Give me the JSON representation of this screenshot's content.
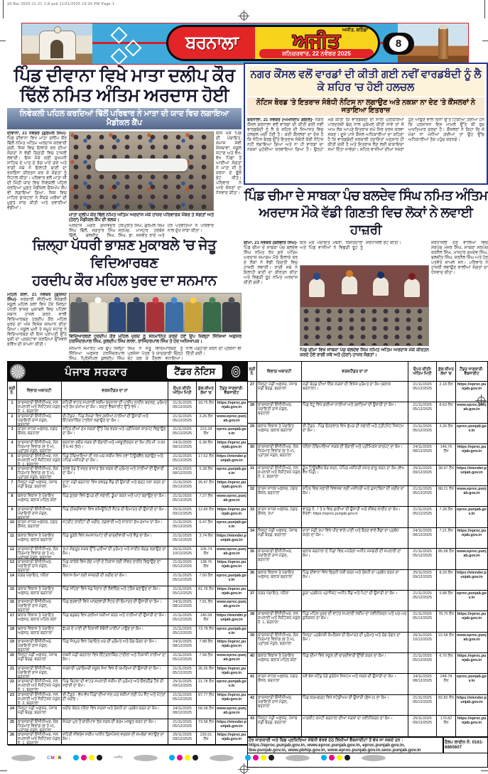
{
  "printer_line": "34 Bar 2025-11-21 1-8.qxd  11/21/2025  10:34 PM  Page 1",
  "masthead": {
    "city": "ਬਰਨਾਲਾ",
    "paper": "ਅਜੀਤ",
    "edition_small": "ਅਜੀਤ, ਬਠਿੰਡਾ",
    "date_line": "ਸ਼ਨਿਚਰਵਾਰ, 22 ਨਵੰਬਰ 2025",
    "page_number": "8",
    "colors": {
      "band": "#3fa9dc",
      "red": "#e32528",
      "yellow": "#f8d31c"
    }
  },
  "articles": {
    "a1": {
      "headline_l1": "ਪਿੰਡ ਦੀਵਾਨਾ ਵਿਖੇ ਮਾਤਾ ਦਲੀਪ ਕੌਰ",
      "headline_l2": "ਢਿੱਲੋਂ ਨਮਿਤ ਅੰਤਿਮ ਅਰਦਾਸ ਹੋਈ",
      "subhead": "ਨਿਵੇਕਲੀ ਪਹਿਲ ਕਰਦਿਆਂ ਢਿੱਲੋਂ ਪਰਿਵਾਰ ਨੇ ਮਾਤਾ ਦੀ ਯਾਦ ਵਿਚ ਲਗਾਇਆ ਮੈਡੀਕਲ ਕੈਂਪ",
      "dateline": "ਦੀਵਾਨਾ, 21 ਨਵੰਬਰ (ਗੁਰਮੇਲ ਸਿੰਘ)-",
      "body_left": "ਪਿੰਡ ਦੀਵਾਨਾ ਵਿਖੇ ਮਾਤਾ ਦਲੀਪ ਕੌਰ ਢਿੱਲੋਂ ਨਮਿਤ ਅੰਤਿਮ ਅਰਦਾਸ ਕਰਵਾਈ ਗਈ, ਜਿਸ ਵਿਚ ਇਲਾਕੇ ਭਰ ਦੀਆਂ ਸੰਗਤਾਂ ਨੇ ਵੱਡੀ ਗਿਣਤੀ ਵਿਚ ਹਾਜ਼ਰੀ ਲਵਾਈ। ਇਸ ਮੌਕੇ ਸ੍ਰੀ ਸੁਖਮਨੀ ਸਾਹਿਬ ਦੇ ਪਾਠ ਦੇ ਭੋਗ ਪਾਏ ਗਏ ਅਤੇ ਰਾਗੀ ਜਥੇ ਨੇ ਇਲਾਹੀ ਬਾਣੀ ਦਾ ਰਸਭਿੰਨਾ ਕੀਰਤਨ ਕਰ ਕੇ ਸੰਗਤਾਂ ਨੂੰ ਨਿਹਾਲ ਕੀਤਾ। ਪਰਿਵਾਰ ਵਲੋਂ ਮਾਤਾ ਜੀ ਦੀ ਮਿੱਠੀ ਯਾਦ ਵਿਚ ਨਿਵੇਕਲੀ ਪਹਿਲ ਕਰਦਿਆਂ ਮੁਫ਼ਤ ਮੈਡੀਕਲ ਚੈਕਅੱਪ ਕੈਂਪ ਵੀ ਲਗਾਇਆ ਗਿਆ, ਜਿਸ ਵਿਚ ਮਾਹਿਰ ਡਾਕਟਰਾਂ ਨੇ ਸੈਂਕੜੇ ਮਰੀਜ਼ਾਂ ਦੀ ਮੁਫ਼ਤ ਜਾਂਚ ਕੀਤੀ ਅਤੇ ਦਵਾਈਆਂ ਵੰਡੀਆਂ।",
      "body_right": "ਇਸ ਮੌਕੇ ਪਿੰਡ ਦੀ ਪੰਚਾਇਤ, ਸਮਾਜ ਸੇਵੀ ਸੰਸਥਾਵਾਂ, ਸਕੂਲ ਸਟਾਫ਼ ਅਤੇ ਵੱਖ-ਵੱਖ ਪਿੰਡਾਂ ਤੋਂ ਆਈਆਂ ਸੰਗਤਾਂ ਨੇ ਮਾਤਾ ਜੀ ਨੂੰ ਸ਼ਰਧਾ ਦੇ ਫੁੱਲ ਭੇਟ ਕੀਤੇ। ਪਰਿਵਾਰ ਨੇ ਆਏ ਸੱਜਣਾਂ ਦਾ ਧੰਨਵਾਦ ਕੀਤਾ।",
      "body_bottom": "ਅਰਦਾਸ ਮਗਰੋਂ ਸੁਖਵਿੰਦਰ ਸਿੰਘ ਢਿੱਲੋਂ, ਜਗਤਾਰ ਸਿੰਘ ਢਿੱਲੋਂ, ਬਲਜੀਤ ਸਿੰਘ, ਹਰਪ੍ਰੀਤ ਸਿੰਘ, ਗੁਰਮੇਲ ਸਿੰਘ ਸਰਪੰਚ, ਮਾਸਟਰ ਹਰਬੰਸ ਸਿੰਘ, ਡਾ. ਜਸਵੰਤ ਰਾਏ ਅਤੇ ਹੋਰ ਪਤਵੰਤਿਆਂ ਨੇ ਪਰਿਵਾਰ ਨਾਲ ਦੁੱਖ ਸਾਂਝਾ ਕੀਤਾ।",
      "caption": "ਮਾਤਾ ਦਲੀਪ ਕੌਰ ਢਿੱਲੋਂ ਨਮਿਤ ਅੰਤਿਮ ਅਰਦਾਸ ਮੌਕੇ ਹਾਜ਼ਰ ਪਰਿਵਾਰਕ ਮੈਂਬਰ ਤੇ ਸੰਗਤਾਂ ਅਤੇ (ਹੇਠਾਂ) ਮੈਡੀਕਲ ਕੈਂਪ ਦੀ ਝਲਕ।"
    },
    "a2": {
      "headline_l1": "ਜ਼ਿਲ੍ਹਾ ਪੱਧਰੀ ਭਾਸ਼ਣ ਮੁਕਾਬਲੇ 'ਚ ਜੇਤੂ ਵਿਦਿਆਰਥਣ",
      "headline_l2": "ਹਰਦੀਪ ਕੌਰ ਮਹਿਲ ਖੁਰਦ ਦਾ ਸਨਮਾਨ",
      "dateline": "ਮਹਿਲ ਕਲਾਂ, 21 ਨਵੰਬਰ (ਗੁਰਜੰਟ ਸਿੰਘ)-",
      "body_left": "ਸਰਕਾਰੀ ਸੀਨੀਅਰ ਸੈਕੰਡਰੀ ਸਕੂਲ ਮਹਿਲ ਕਲਾਂ ਵਿਖੇ ਹੋਏ ਜ਼ਿਲ੍ਹਾ ਪੱਧਰੀ ਭਾਸ਼ਣ ਮੁਕਾਬਲੇ ਵਿਚ ਪਹਿਲਾ ਸਥਾਨ ਹਾਸਲ ਕਰਨ ਵਾਲੀ ਵਿਦਿਆਰਥਣ ਹਰਦੀਪ ਕੌਰ ਮਹਿਲ ਖੁਰਦ ਦਾ ਅੱਜ ਵਿਸ਼ੇਸ਼ ਸਨਮਾਨ ਕੀਤਾ ਗਿਆ। ਸਕੂਲ ਮੁਖੀ ਤੇ ਸਮੂਹ ਸਟਾਫ਼ ਨੇ ਵਿਦਿਆਰਥਣ ਦੀ ਇਸ ਪ੍ਰਾਪਤੀ ਉੱਤੇ ਖੁਸ਼ੀ ਦਾ ਪ੍ਰਗਟਾਵਾ ਕਰਦਿਆਂ ਉੱਜਵਲ ਭਵਿੱਖ ਦੀ ਕਾਮਨਾ ਕੀਤੀ।",
      "body_bottom": "ਸਨਮਾਨ ਸਮਾਰੋਹ ਮੌਕੇ ਉਪ ਜ਼ਿਲ੍ਹਾ ਸਿੱਖਿਆ ਅਫ਼ਸਰ ਹਰਜਿੰਦਰਪਾਲ ਸਿੰਘ, ਪ੍ਰਿੰਸੀਪਲ ਕੁਲਦੀਪ ਸਿੰਘ ਲਾਲਾ ਅਤੇ ਲੈਕਚਰਾਰ ਰਾਜਿੰਦਰਪਾਲ ਸਿੰਘ ਨੇ ਜੇਤੂ ਵਿਦਿਆਰਥਣ ਨੂੰ ਪ੍ਰਸੰਸਾ ਪੱਤਰ ਤੇ ਯਾਦਗਾਰੀ ਚਿੰਨ੍ਹ ਭੇਟ ਕਰ ਕੇ ਹੌਸਲਾ ਵਧਾਇਆ। ਵਿਦਿਆਰਥੀਆਂ ਨੂੰ ਸਖ਼ਤ ਮਿਹਨਤ ਨਾਲ ਪੜ੍ਹਾਈ ਕਰਨ ਦੀ ਪ੍ਰੇਰਨਾ ਵੀ ਦਿੱਤੀ ਗਈ।",
      "caption": "ਵਿਦਿਆਰਥਣ ਹਰਦੀਪ ਕੌਰ ਮਹਿਲ ਖੁਰਦ ਨੂੰ ਸਨਮਾਨਿਤ ਕਰਦੇ ਹੋਏ ਉਪ ਜ਼ਿਲ੍ਹਾ ਸਿੱਖਿਆ ਅਫ਼ਸਰ ਹਰਜਿੰਦਰਪਾਲ ਸਿੰਘ, ਕੁਲਦੀਪ ਸਿੰਘ ਲਾਲਾ, ਰਾਜਿੰਦਰਪਾਲ ਸਿੰਘ ਤੇ ਹੋਰ ਅਧਿਆਪਕ।"
    },
    "a3": {
      "headline": "ਨਗਰ ਕੌਂਸਲ ਵਲੋਂ ਵਾਰਡਾਂ ਦੀ ਕੀਤੀ ਗਈ ਨਵੀਂ ਵਾਰਡਬੰਦੀ ਨੂੰ ਲੈ ਕੇ ਸ਼ਹਿਰ 'ਚ ਹੋਈ ਹਲਚਲ",
      "subhead": "ਨੋਟਿਸ ਬੋਰਡ 'ਤੇ ਇਤਰਾਜ਼ ਸੰਬੰਧੀ ਨੋਟਿਸ ਨਾ ਲਗਾਉਣ ਅਤੇ ਨਕਸ਼ਾ ਨਾ ਦੇਣ 'ਤੇ ਕੌਂਸਲਰਾਂ ਨੇ ਜਤਾਇਆ ਇਤਰਾਜ਼",
      "dateline": "ਬਰਨਾਲਾ, 21 ਨਵੰਬਰ (ਅਮਨਦੀਪ ਗੋਇਲ)-",
      "body": "ਨਗਰ ਕੌਂਸਲ ਬਰਨਾਲਾ ਵਲੋਂ ਵਾਰਡਾਂ ਦੀ ਕੀਤੀ ਗਈ ਨਵੀਂ ਵਾਰਡਬੰਦੀ ਨੂੰ ਲੈ ਕੇ ਸ਼ਹਿਰ ਦੀ ਸਿਆਸਤ ਵਿਚ ਹਲਚਲ ਮਚੀ ਹੋਈ ਹੈ। ਕਈ ਕੌਂਸਲਰਾਂ ਦਾ ਦੋਸ਼ ਹੈ ਕਿ ਨੋਟਿਸ ਬੋਰਡ ਉੱਤੇ ਇਤਰਾਜ਼ ਸੰਬੰਧੀ ਕੋਈ ਨੋਟਿਸ ਨਹੀਂ ਲਗਾਇਆ ਗਿਆ ਅਤੇ ਨਾ ਹੀ ਵਾਰਡਾਂ ਦਾ ਨਕਸ਼ਾ ਮੁਹੱਈਆ ਕਰਵਾਇਆ ਗਿਆ ਹੈ। ਉਨ੍ਹਾਂ ਮੰਗ ਕੀਤੀ ਕਿ ਵਾਰਡਬੰਦੀ ਦੀ ਸਾਰੀ ਪ੍ਰਕਿਰਿਆ ਪਾਰਦਰਸ਼ੀ ਢੰਗ ਨਾਲ ਮੁਕੰਮਲ ਕੀਤੀ ਜਾਵੇ ਤਾਂ ਜੋ ਆਮ ਲੋਕ ਆਪਣੇ ਇਤਰਾਜ਼ ਸਮੇਂ ਸਿਰ ਦਰਜ ਕਰਵਾ ਸਕਣ। ਦੂਜੇ ਪਾਸੇ ਕੌਂਸਲ ਅਧਿਕਾਰੀਆਂ ਦਾ ਕਹਿਣਾ ਹੈ ਕਿ ਵਾਰਡਬੰਦੀ ਸਰਕਾਰੀ ਹਦਾਇਤਾਂ ਅਨੁਸਾਰ ਹੀ ਕੀਤੀ ਗਈ ਹੈ ਅਤੇ ਇਤਰਾਜ਼ ਲੈਣ ਲਈ ਬਾਕਾਇਦਾ ਸਮਾਂ ਦਿੱਤਾ ਜਾਵੇਗਾ। ਸ਼ਹਿਰ ਵਾਸੀਆਂ ਦੀਆਂ ਨਜ਼ਰਾਂ ਹੁਣ ਆਉਣ ਵਾਲੇ ਦਿਨਾਂ ਉੱਤੇ ਟਿਕੀਆਂ ਹੋਈਆਂ ਹਨ ਕਿ ਪ੍ਰਸ਼ਾਸਨ ਇਸ ਮਾਮਲੇ ਉੱਤੇ ਕੀ ਰੁਖ਼ ਅਖਤਿਆਰ ਕਰਦਾ ਹੈ। ਕੌਂਸਲਰਾਂ ਨੇ ਕਿਹਾ ਕਿ ਜੇ ਮੰਗਾਂ ਨਾ ਮੰਨੀਆਂ ਗਈਆਂ ਤਾਂ ਉਹ ਉੱਚ ਅਧਿਕਾਰੀਆਂ ਤੱਕ ਪਹੁੰਚ ਕਰਨਗੇ।"
    },
    "a4": {
      "headline_l1": "ਪਿੰਡ ਚੀਮਾ ਦੇ ਸਾਬਕਾ ਪੰਚ ਬਲਦੇਵ ਸਿੰਘ ਨਮਿਤ ਅੰਤਿਮ",
      "headline_l2": "ਅਰਦਾਸ ਮੌਕੇ ਵੱਡੀ ਗਿਣਤੀ ਵਿਚ ਲੋਕਾਂ ਨੇ ਲਵਾਈ ਹਾਜ਼ਰੀ",
      "dateline": "ਚੀਮਾ, 21 ਨਵੰਬਰ (ਬਲਵੀਰ ਸਿੰਘ)-",
      "body_left": "ਪਿੰਡ ਚੀਮਾ ਦੇ ਸਾਬਕਾ ਪੰਚ ਬਲਦੇਵ ਸਿੰਘ ਨਮਿਤ ਰੱਖੇ ਗਏ ਅੰਤਿਮ ਅਰਦਾਸ ਸਮਾਗਮ ਮੌਕੇ ਇਲਾਕੇ ਭਰ ਦੇ ਲੋਕਾਂ ਨੇ ਵੱਡੀ ਗਿਣਤੀ ਵਿਚ ਹਾਜ਼ਰੀ ਲਵਾਈ। ਰਾਗੀ ਜਥੇ ਨੇ ਇਲਾਹੀ ਬਾਣੀ ਦਾ ਕੀਰਤਨ ਕੀਤਾ ਅਤੇ ਵਿਛੜੀ ਰੂਹ ਨਮਿਤ ਅਰਦਾਸ ਕੀਤੀ ਗਈ।",
      "body_mid_top": "ਇਸ ਮੌਕੇ ਪੰਚਾਇਤ ਮੈਂਬਰਾਂ, ਰਿਸ਼ਤੇਦਾਰਾਂ ਅਤੇ ਪਿੰਡ ਵਾਸੀਆਂ ਨੇ ਵਿਛੜੀ ਰੂਹ ਨੂੰ ਸ਼ਰਧਾਂਜਲੀ ਭੇਟ ਕੀਤੀ।",
      "body_right": "ਸ਼ਰਧਾਂਜਲੀ ਦੇਣ ਵਾਲਿਆਂ ਵਿਚ ਸਰਪੰਚ ਮੇਜਰ ਸਿੰਘ, ਸਾਬਕਾ ਸਰਪੰਚ ਕਰਨੈਲ ਸਿੰਘ, ਮਾਸਟਰ ਸੁਖਦੇਵ ਸਿੰਘ, ਬਲਜੀਤ ਸਿੰਘ, ਜਰਨੈਲ ਸਿੰਘ ਅਤੇ ਹੋਰ ਪਤਵੰਤੇ ਸ਼ਾਮਲ ਸਨ। ਪਰਿਵਾਰ ਨੇ ਹਾਜ਼ਰੀ ਲਵਾਉਣ ਵਾਲੀਆਂ ਸੰਗਤਾਂ ਦਾ ਧੰਨਵਾਦ ਕੀਤਾ।",
      "caption": "ਪਿੰਡ ਚੀਮਾ ਵਿਖੇ ਸਾਬਕਾ ਪੰਚ ਬਲਦੇਵ ਸਿੰਘ ਨਮਿਤ ਅੰਤਿਮ ਅਰਦਾਸ ਮੌਕੇ ਕੀਰਤਨ ਕਰਦੇ ਹੋਏ ਰਾਗੀ ਜਥੇ ਅਤੇ (ਹੇਠਾਂ) ਹਾਜ਼ਰ ਸੰਗਤਾਂ।"
    }
  },
  "tender": {
    "gov_title": "ਪੰਜਾਬ ਸਰਕਾਰ",
    "notice_title": "ਟੈਂਡਰ ਨੋਟਿਸ",
    "headers": [
      "ਲੜੀ ਨੰ.",
      "ਵਿਭਾਗ ਅਥਾਰਟੀ",
      "ਵਰਕ/ਟੈਂਡਰ ਦਾ ਨਾਂ",
      "ਓਪਨ ਕੀਤੀ/ ਅੰਤਿਮ ਮਿਤੀ",
      "ਕੁੱਲ ਕੀਮਤ ਲੱਖਾਂ 'ਚ",
      "ਟੈਂਡਰ ਜਾਣਕਾਰੀ- ਵੈੱਬਸਾਈਟ"
    ],
    "rows_left": [
      {
        "no": "1",
        "dept": "ਕਾਰਜਕਾਰੀ ਇੰਜੀਨੀਅਰ, ਜਲ ਸਪਲਾਈ ਅਤੇ ਸੈਨੀਟੇਸ਼ਨ ਮੰਡਲ ਨੰ. 1, ਬਰਨਾਲਾ",
        "work": "ਸ਼ਹਿਰੀ ਵਾਟਰ ਸਪਲਾਈ ਸਕੀਮ ਬਰਨਾਲਾ ਦੀ ਪਾਈਪ ਲਾਈਨ ਬਦਲਣ, ਮੁਰੰਮਤ ਅਤੇ ਰੱਖ-ਰਖਾਅ ਦਾ ਕੰਮ। ਸ਼ਰਤਾਂ ਵੈੱਬਸਾਈਟ ਉੱਤੇ ਵੇਖੋ।",
        "open": "21/11/2025",
        "close": "05/12/2025",
        "amount": "18.75 ਲੱਖ",
        "web": "https://eproc.punjab.gov.in"
      },
      {
        "no": "2",
        "dept": "ਕਾਰਜਕਾਰੀ ਇੰਜੀਨੀਅਰ, ਪੰਚਾਇਤੀ ਰਾਜ ਮੰਡਲ, ਬਰਨਾਲਾ",
        "work": "ਈ-ਟੈਂਡਰ - ਪਿੰਡ ਸੰਘੇੜਾ ਵਿਖੇ ਗਲੀਆਂ-ਨਾਲੀਆਂ ਦੀ ਉਸਾਰੀ ਅਤੇ ਇੰਟਰਲਾਕਿੰਗ ਟਾਈਲਾਂ ਲਗਾਉਣ ਦਾ ਕੰਮ।",
        "open": "21/11/2025",
        "close": "05/12/2025",
        "amount": "3.26 ਲੱਖ",
        "web": "www.eproc.punjab.gov.in"
      },
      {
        "no": "3",
        "dept": "ਕਾਰਜ ਸਾਧਕ ਅਫ਼ਸਰ, ਨਗਰ ਕੌਂਸਲ, ਬਰਨਾਲਾ",
        "work": "ਸ਼ਹਿਰ ਦੀਆਂ ਮੁੱਖ ਸੜਕਾਂ ਉੱਤੇ ਪੈਚ ਵਰਕ ਅਤੇ ਪ੍ਰੀਮਿਕਸ ਕਾਰਪੇਟ ਵਿਛਾਉਣ ਦਾ ਕੰਮ।",
        "open": "21/11/2025",
        "close": "05/12/2025",
        "amount": "223.28 ਲੱਖ",
        "web": "eproc.punjab.gov.in"
      },
      {
        "no": "4",
        "dept": "ਕਾਰਜਕਾਰੀ ਇੰਜੀਨੀਅਰ, ਲੋਕ ਨਿਰਮਾਣ ਵਿਭਾਗ (ਭ ਤੇ ਮ), ਪ੍ਰਾਂਤਕ ਮੰਡਲ, ਬਰਨਾਲਾ",
        "work": "ਬਰਨਾਲਾ-ਭਦੌੜ ਸੜਕ ਦੀ ਚੌੜਾਈ ਅਤੇ ਮਜ਼ਬੂਤੀਕਰਨ ਦਾ ਕੰਮ (ਕਿ.ਮੀ. 0.00 ਤੋਂ 6.40 ਤੱਕ)।",
        "open": "24/11/2025",
        "close": "08/12/2025",
        "amount": "6.38 ਲੱਖ",
        "web": "https://eproc.punjab.gov.in"
      },
      {
        "no": "5",
        "dept": "ਕਾਰਜਕਾਰੀ ਇੰਜੀਨੀਅਰ, ਜਲ ਸਪਲਾਈ ਅਤੇ ਸੈਨੀਟੇਸ਼ਨ ਮੰਡਲ ਨੰ. 1, ਬਰਨਾਲਾ",
        "work": "ਪਿੰਡ ਹੰਢਿਆਇਆ ਦੀ ਜਲ ਘਰ ਸਕੀਮ ਵਿਖੇ ਨਵਾਂ ਟਿਊਬਵੈੱਲ ਲਗਾਉਣ ਅਤੇ ਪੰਪਿੰਗ ਮਸ਼ੀਨਰੀ ਦਾ ਕੰਮ।",
        "open": "21/11/2025",
        "close": "05/12/2025",
        "amount": "17.62 ਲੱਖ",
        "web": "https://etender.punjab.gov.in"
      },
      {
        "no": "6",
        "dept": "ਕਾਰਜਕਾਰੀ ਇੰਜੀਨੀਅਰ, ਲੋਕ ਨਿਰਮਾਣ ਵਿਭਾਗ (ਭ ਤੇ ਮ), ਪ੍ਰਾਂਤਕ ਮੰਡਲ, ਬਰਨਾਲਾ",
        "work": "ਰੇਲਵੇ ਰੋਡ ਤੋਂ ਸਦਰ ਬਾਜ਼ਾਰ ਤੱਕ ਸੜਕ ਦੀ ਮੁਰੰਮਤ ਅਤੇ ਨਾਲੀਆਂ ਦੀ ਉਸਾਰੀ ਦਾ ਕੰਮ।",
        "open": "24/11/2025",
        "close": "08/12/2025",
        "amount": "5.28 ਲੱਖ",
        "web": "eproc.punjab.gov.in"
      },
      {
        "no": "7",
        "dept": "ਜ਼ਿਲ੍ਹਾ ਮੰਡੀ ਅਫ਼ਸਰ, ਪੰਜਾਬ ਮੰਡੀ ਬੋਰਡ, ਬਰਨਾਲਾ",
        "work": "ਦਾਣਾ ਮੰਡੀ ਬਰਨਾਲਾ ਵਿਖੇ ਕਵਰਡ ਸ਼ੈੱਡ ਦੀ ਉਸਾਰੀ ਅਤੇ ਫੜ੍ਹ ਪੱਕਾ ਕਰਨ ਦਾ ਕੰਮ।",
        "open": "21/11/2025",
        "close": "05/12/2025",
        "amount": "26.47 ਲੱਖ",
        "web": "https://eproc.punjab.gov.in"
      },
      {
        "no": "8",
        "dept": "ਬਲਾਕ ਵਿਕਾਸ ਤੇ ਪੰਚਾਇਤ ਅਫ਼ਸਰ, ਬਲਾਕ ਮਹਿਲ ਕਲਾਂ",
        "work": "ਪਿੰਡ ਕੁਤਬਾ ਵਿਖੇ ਛੱਪੜ ਦੀ ਸਫ਼ਾਈ, ਡੂੰਘਾ ਕਰਨ ਅਤੇ ਘਾਟ ਬਣਾਉਣ ਦਾ ਕੰਮ।",
        "open": "21/11/2025",
        "close": "05/12/2025",
        "amount": "7.27 ਲੱਖ",
        "web": "www.eproc.punjab.gov.in"
      },
      {
        "no": "9",
        "dept": "ਕਾਰਜਕਾਰੀ ਇੰਜੀਨੀਅਰ, ਪੰਚਾਇਤੀ ਰਾਜ ਮੰਡਲ, ਬਰਨਾਲਾ",
        "work": "ਪਿੰਡ ਠੀਕਰੀਵਾਲਾ ਵਿਖੇ ਕਮਿਊਨਿਟੀ ਸੈਂਟਰ ਦੀ ਇਮਾਰਤ ਦੀ ਉਸਾਰੀ ਦਾ ਕੰਮ।",
        "open": "25/11/2025",
        "close": "09/12/2025",
        "amount": "12.89 ਲੱਖ",
        "web": "https://eproc.punjab.gov.in"
      },
      {
        "no": "10",
        "dept": "ਕਾਰਜ ਸਾਧਕ ਅਫ਼ਸਰ, ਨਗਰ ਕੌਂਸਲ, ਬਰਨਾਲਾ",
        "work": "ਸਟਰੀਟ ਲਾਈਟਾਂ ਦੀ ਖ਼ਰੀਦ, ਲਗਵਾਈ ਅਤੇ ਸਾਲਾਨਾ ਰੱਖ-ਰਖਾਅ ਦਾ ਕੰਮ।",
        "open": "21/11/2025",
        "close": "05/12/2025",
        "amount": "6.47 ਲੱਖ",
        "web": "eproc.punjab.gov.in"
      },
      {
        "no": "11",
        "dept": "ਬਲਾਕ ਵਿਕਾਸ ਤੇ ਪੰਚਾਇਤ ਅਫ਼ਸਰ, ਬਲਾਕ ਬਰਨਾਲਾ",
        "work": "ਪਿੰਡ ਰੂੜੇਕੇ ਵਿਖੇ ਸ਼ਮਸ਼ਾਨਘਾਟ ਦੀ ਚਾਰਦੀਵਾਰੀ ਅਤੇ ਸ਼ੈੱਡ ਦਾ ਕੰਮ।",
        "open": "21/11/2025",
        "close": "05/12/2025",
        "amount": "3.74 ਲੱਖ",
        "web": "https://etender.punjab.gov.in"
      },
      {
        "no": "12",
        "dept": "ਕਾਰਜਕਾਰੀ ਇੰਜੀਨੀਅਰ, ਲੋਕ ਨਿਰਮਾਣ ਵਿਭਾਗ (ਭ ਤੇ ਮ), ਪ੍ਰਾਂਤਕ ਮੰਡਲ, ਬਰਨਾਲਾ",
        "work": "ਤਪਾ-ਸੰਗਰੂਰ ਸੜਕ ਉੱਤੇ ਪੁਲੀਆਂ ਦੀ ਮੁਰੰਮਤ ਅਤੇ ਸਾਈਨ ਬੋਰਡ ਲਗਾਉਣ ਦਾ ਕੰਮ।",
        "open": "26/11/2025",
        "close": "10/12/2025",
        "amount": "106.74 ਲੱਖ",
        "web": "www.eproc.punjab.gov.in"
      },
      {
        "no": "13",
        "dept": "ਕਾਰਜਕਾਰੀ ਇੰਜੀਨੀਅਰ, ਪੰਚਾਇਤੀ ਰਾਜ ਮੰਡਲ, ਬਰਨਾਲਾ",
        "work": "ਪਿੰਡ ਕਾਲੇਕੇ ਵਿਖੇ ਗੰਦੇ ਪਾਣੀ ਦੇ ਨਿਕਾਸ ਲਈ ਸੀਵਰ ਲਾਈਨ ਵਿਛਾਉਣ ਦਾ ਕੰਮ।",
        "open": "21/11/2025",
        "close": "05/12/2025",
        "amount": "138.76 ਲੱਖ",
        "web": "https://eproc.punjab.gov.in"
      },
      {
        "no": "14",
        "dept": "ਨਗਰ ਪੰਚਾਇਤ, ਧਨੌਲਾ",
        "work": "ਵਿਕਾਸ ਕੰਮਾਂ ਲਈ ਸਮੱਗਰੀ ਦੀ ਖ਼ਰੀਦ ਦਾ ਕੰਮ।",
        "open": "21/11/2025",
        "close": "05/12/2025",
        "amount": "7.50 ਲੱਖ",
        "web": "eproc.punjab.gov.in"
      },
      {
        "no": "15",
        "dept": "ਬਲਾਕ ਵਿਕਾਸ ਤੇ ਪੰਚਾਇਤ ਅਫ਼ਸਰ, ਬਲਾਕ ਬਰਨਾਲਾ",
        "work": "ਪਿੰਡ ਸਹਿਣਾ ਵਿਖੇ ਖੇਡ ਮੈਦਾਨ ਦੀ ਲੈਵਲਿੰਗ ਅਤੇ ਟਰੈਕ ਬਣਾਉਣ ਦਾ ਕੰਮ।",
        "open": "21/11/2025",
        "close": "05/12/2025",
        "amount": "81.78 ਲੱਖ",
        "web": "https://eproc.punjab.gov.in"
      },
      {
        "no": "16",
        "dept": "ਕਾਰਜਕਾਰੀ ਇੰਜੀਨੀਅਰ, ਪੰਚਾਇਤੀ ਰਾਜ ਮੰਡਲ, ਬਰਨਾਲਾ",
        "work": "ਪਿੰਡ ਫਰਵਾਹੀ ਵਿਖੇ ਆਂਗਣਵਾੜੀ ਸੈਂਟਰ ਦੀ ਇਮਾਰਤ ਦੀ ਉਸਾਰੀ ਦਾ ਕੰਮ।",
        "open": "24/11/2025",
        "close": "08/12/2025",
        "amount": "7.81 ਲੱਖ",
        "web": "www.eproc.punjab.gov.in"
      },
      {
        "no": "17",
        "dept": "ਬਲਾਕ ਵਿਕਾਸ ਤੇ ਪੰਚਾਇਤ ਅਫ਼ਸਰ, ਬਲਾਕ ਮਹਿਲ ਕਲਾਂ",
        "work": "ਪਿੰਡ ਬਡਬਰ ਵਿਖੇ ਗਲੀਆਂ ਪੱਕੀਆਂ ਕਰਨ ਅਤੇ ਨਾਲੀਆਂ ਦੀ ਉਸਾਰੀ ਦਾ ਕੰਮ।",
        "open": "21/11/2025",
        "close": "05/12/2025",
        "amount": "146.58 ਲੱਖ",
        "web": "https://etender.punjab.gov.in"
      },
      {
        "no": "18",
        "dept": "ਬਲਾਕ ਵਿਕਾਸ ਤੇ ਪੰਚਾਇਤ ਅਫ਼ਸਰ, ਬਲਾਕ ਬਰਨਾਲਾ",
        "work": "ਛੱਪੜ ਦੇ ਪਾਣੀ ਦੀ ਨਿਕਾਸੀ ਸੰਬੰਧੀ ਪਾਈਪਾਂ ਪਾਉਣ ਦਾ ਕੰਮ।",
        "open": "21/11/2025",
        "close": "05/12/2025",
        "amount": "73.78 ਲੱਖ",
        "web": "eproc.punjab.gov.in"
      },
      {
        "no": "19",
        "dept": "ਕਾਰਜਕਾਰੀ ਇੰਜੀਨੀਅਰ, ਪੰਚਾਇਤੀ ਰਾਜ ਮੰਡਲ, ਬਰਨਾਲਾ",
        "work": "ਪਿੰਡ ਜੋਧਪੁਰ ਵਿਖੇ ਪੰਚਾਇਤ ਘਰ ਦੀ ਮੁਰੰਮਤ ਅਤੇ ਰੰਗ-ਰੋਗਨ ਦਾ ਕੰਮ।",
        "open": "24/11/2025",
        "close": "08/12/2025",
        "amount": "7.88 ਲੱਖ",
        "web": "https://eproc.punjab.gov.in"
      },
      {
        "no": "20",
        "dept": "ਜ਼ਿਲ੍ਹਾ ਮੰਡੀ ਅਫ਼ਸਰ, ਪੰਜਾਬ ਮੰਡੀ ਬੋਰਡ, ਬਰਨਾਲਾ",
        "work": "ਸਬਜ਼ੀ ਮੰਡੀ ਬਰਨਾਲਾ ਵਿਖੇ ਇੰਟਰਲਾਕਿੰਗ ਟਾਈਲਾਂ ਅਤੇ ਨਿਕਾਸੀ ਨਾਲੀਆਂ ਦਾ ਕੰਮ।",
        "open": "21/11/2025",
        "close": "05/12/2025",
        "amount": "7.58 ਲੱਖ",
        "web": "www.eproc.punjab.gov.in"
      },
      {
        "no": "21",
        "dept": "ਕਾਰਜਕਾਰੀ ਇੰਜੀਨੀਅਰ, ਪੰਚਾਇਤੀ ਰਾਜ ਮੰਡਲ, ਬਰਨਾਲਾ",
        "work": "ਸਰਕਾਰੀ ਪ੍ਰਾਇਮਰੀ ਸਕੂਲ ਸੇਖਾ ਵਿਖੇ ਦੋ ਕਮਰਿਆਂ ਦੀ ਉਸਾਰੀ ਦਾ ਕੰਮ।",
        "open": "21/11/2025",
        "close": "05/12/2025",
        "amount": "26.26 ਲੱਖ",
        "web": "https://eproc.punjab.gov.in"
      },
      {
        "no": "22",
        "dept": "ਕਾਰਜਕਾਰੀ ਇੰਜੀਨੀਅਰ, ਜਲ ਸਪਲਾਈ ਅਤੇ ਸੈਨੀਟੇਸ਼ਨ ਮੰਡਲ ਨੰ. 1, ਬਰਨਾਲਾ",
        "work": "ਪਿੰਡ ਬਿਹਲਾ ਦੀ ਵਾਟਰ ਸਪਲਾਈ ਸਕੀਮ ਦੀ ਮੁਰੰਮਤ ਅਤੇ ਓਵਰਹੈੱਡ ਟੈਂਕ ਦੀ ਸਫ਼ਾਈ ਦਾ ਕੰਮ।",
        "open": "25/11/2025",
        "close": "09/12/2025",
        "amount": "21.78 ਲੱਖ",
        "web": "eproc.punjab.gov.in"
      },
      {
        "no": "23",
        "dept": "ਕਾਰਜਕਾਰੀ ਇੰਜੀਨੀਅਰ, ਜਲ ਸਪਲਾਈ ਅਤੇ ਸੈਨੀਟੇਸ਼ਨ ਮੰਡਲ ਨੰ. 2, ਬਰਨਾਲਾ",
        "work": "ਈ-ਟੈਂਡਰ - ਵੱਖ-ਵੱਖ ਪਿੰਡਾਂ ਦੀਆਂ ਜਲ ਘਰ ਸਕੀਮਾਂ ਲਈ ਪੰਪ ਸੈੱਟ ਅਤੇ ਮੋਟਰਾਂ ਦੀ ਖ਼ਰੀਦ।",
        "open": "21/11/2025",
        "close": "05/12/2025",
        "amount": "87.77 ਲੱਖ",
        "web": "https://eproc.punjab.gov.in"
      },
      {
        "no": "24",
        "dept": "ਜ਼ਿਲ੍ਹਾ ਮੰਡੀ ਅਫ਼ਸਰ, ਪੰਜਾਬ ਮੰਡੀ ਬੋਰਡ, ਬਰਨਾਲਾ",
        "work": "ਖ਼ਰੀਦ ਕੇਂਦਰ ਧਨੌਲਾ ਵਿਖੇ ਸੜਕਾਂ ਅਤੇ ਰੋਸ਼ਨੀ ਦਾ ਪ੍ਰਬੰਧ ਕਰਨ ਦਾ ਕੰਮ।",
        "open": "24/11/2025",
        "close": "08/12/2025",
        "amount": "58.38 ਲੱਖ",
        "web": "www.eproc.punjab.gov.in"
      },
      {
        "no": "25",
        "dept": "ਕਾਰਜਕਾਰੀ ਇੰਜੀਨੀਅਰ, ਲੋਕ ਨਿਰਮਾਣ ਵਿਭਾਗ (ਭ ਤੇ ਮ), ਪ੍ਰਾਂਤਕ ਮੰਡਲ, ਬਰਨਾਲਾ",
        "work": "ਸੰਘੇੜਾ ਪੁਲ ਤੋਂ ਬਾਈਪਾਸ ਤੱਕ ਸੜਕ ਦੀ ਬਰਮ ਮਜ਼ਬੂਤ ਕਰਨ ਦਾ ਕੰਮ।",
        "open": "21/11/2025",
        "close": "05/12/2025",
        "amount": "73.58 ਲੱਖ",
        "web": "https://etender.punjab.gov.in"
      },
      {
        "no": "26",
        "dept": "ਕਾਰਜਕਾਰੀ ਇੰਜੀਨੀਅਰ, ਜਲ ਸਪਲਾਈ ਅਤੇ ਸੈਨੀਟੇਸ਼ਨ ਮੰਡਲ ਨੰ. 1, ਬਰਨਾਲਾ",
        "work": "ਸ਼ਹਿਰੀ ਸੀਵਰੇਜ ਸਕੀਮ ਅਧੀਨ ਡਿਸਪੋਜ਼ਲ ਵਰਕਸ ਦੀ ਸਮਰੱਥਾ ਵਧਾਉਣ ਦਾ ਕੰਮ।",
        "open": "25/11/2025",
        "close": "09/12/2025",
        "amount": "226.51 ਲੱਖ",
        "web": "https://eproc.punjab.gov.in"
      }
    ],
    "rows_right": [
      {
        "no": "27",
        "dept": "ਜ਼ਿਲ੍ਹਾ ਮੰਡੀ ਅਫ਼ਸਰ, ਪੰਜਾਬ ਮੰਡੀ ਬੋਰਡ, ਬਰਨਾਲਾ",
        "work": "ਮੰਡੀ ਬੋਰਡ ਦੀਆਂ ਲਿੰਕ ਸੜਕਾਂ ਦੀ ਵਿਸ਼ੇਸ਼ ਮੁਰੰਮਤ ਦਾ ਕੰਮ (ਬਲਾਕ ਬਰਨਾਲਾ)।",
        "open": "21/11/2025",
        "close": "05/12/2025",
        "amount": "2.18 ਲੱਖ",
        "web": "https://eproc.punjab.gov.in"
      },
      {
        "no": "28",
        "dept": "ਕਾਰਜਕਾਰੀ ਇੰਜੀਨੀਅਰ, ਪੰਚਾਇਤੀ ਰਾਜ ਮੰਡਲ, ਬਰਨਾਲਾ",
        "work": "ਪਿੰਡ ਕੱਟੂ ਵਿਖੇ ਗਲੀਆਂ-ਨਾਲੀਆਂ ਅਤੇ ਰਸਤਿਆਂ ਦੀ ਉਸਾਰੀ ਦਾ ਕੰਮ।",
        "open": "21/11/2025",
        "close": "05/12/2025",
        "amount": "8.63 ਲੱਖ",
        "web": "www.eproc.punjab.gov.in"
      },
      {
        "no": "29",
        "dept": "ਬਲਾਕ ਵਿਕਾਸ ਤੇ ਪੰਚਾਇਤ ਅਫ਼ਸਰ, ਬਲਾਕ ਬਰਨਾਲਾ",
        "work": "ਈ-ਟੈਂਡਰ - ਪਿੰਡ ਚੰਨਣਵਾਲ ਵਿਖੇ ਛੱਪੜ ਦੀ ਸਫ਼ਾਈ ਅਤੇ ਟ੍ਰੀਟਮੈਂਟ ਸਿਸਟਮ ਦਾ ਕੰਮ।",
        "open": "21/11/2025",
        "close": "05/12/2025",
        "amount": "3.26 ਲੱਖ",
        "web": "eproc.punjab.gov.in"
      },
      {
        "no": "30",
        "dept": "ਕਾਰਜਕਾਰੀ ਇੰਜੀਨੀਅਰ, ਲੋਕ ਨਿਰਮਾਣ ਵਿਭਾਗ (ਭ ਤੇ ਮ), ਪ੍ਰਾਂਤਕ ਮੰਡਲ, ਬਰਨਾਲਾ",
        "work": "ਧਨੌਲਾ-ਹੰਢਿਆਇਆ ਸੜਕ ਦੀ ਚੌੜਾਈ ਅਤੇ ਪ੍ਰੀਮਿਕਸ ਕਾਰਪੇਟ ਦਾ ਕੰਮ।",
        "open": "24/11/2025",
        "close": "08/12/2025",
        "amount": "146.76 ਲੱਖ",
        "web": "https://eproc.punjab.gov.in"
      },
      {
        "no": "31",
        "dept": "ਕਾਰਜਕਾਰੀ ਇੰਜੀਨੀਅਰ, ਜਲ ਸਪਲਾਈ ਅਤੇ ਸੈਨੀਟੇਸ਼ਨ ਮੰਡਲ ਨੰ. 2, ਬਰਨਾਲਾ",
        "work": "ਡੂੰਘੇ ਟਿਊਬਵੈੱਲ ਬੋਰ ਕਰਨ, ਪੰਪਿੰਗ ਮਸ਼ੀਨਰੀ ਸਮੇਤ ਚਾਲੂ ਕਰਨ ਦਾ ਕੰਮ (ਵੱਖ-ਵੱਖ ਪਿੰਡ)।",
        "open": "25/11/2025",
        "close": "09/12/2025",
        "amount": "38.97 ਲੱਖ",
        "web": "https://etender.punjab.gov.in"
      },
      {
        "no": "32",
        "dept": "ਕਾਰਜ ਸਾਧਕ ਅਫ਼ਸਰ, ਨਗਰ ਕੌਂਸਲ, ਬਰਨਾਲਾ",
        "work": "ਸ਼ਹਿਰ ਵਿਚ ਸਫ਼ਾਈ ਵਿਵਸਥਾ ਲਈ ਮਸ਼ੀਨਰੀ ਅਤੇ ਡਸਟਬਿਨਾਂ ਦੀ ਖ਼ਰੀਦ ਦਾ ਕੰਮ।",
        "open": "21/11/2025",
        "close": "05/12/2025",
        "amount": "88.21 ਲੱਖ",
        "web": "www.eproc.punjab.gov.in"
      },
      {
        "no": "33",
        "dept": "ਕਾਰਜ ਸਾਧਕ ਅਫ਼ਸਰ, ਨਗਰ ਕੌਂਸਲ, ਤਪਾ",
        "work": "ਵਾਰਡ ਨੰ. 7 ਤੇ 8 ਵਿਚ ਗਲੀਆਂ ਦੀ ਉਸਾਰੀ ਅਤੇ ਸੀਵਰ ਲਾਈਨ ਦਾ ਕੰਮ। ਵੇਰਵਾ: https://eproc.punjab.gov.in",
        "open": "21/11/2025",
        "close": "05/12/2025",
        "amount": "7.28 ਲੱਖ",
        "web": "eproc.punjab.gov.in"
      },
      {
        "no": "34",
        "dept": "ਜ਼ਿਲ੍ਹਾ ਮੰਡੀ ਅਫ਼ਸਰ, ਪੰਜਾਬ ਮੰਡੀ ਬੋਰਡ, ਬਰਨਾਲਾ",
        "work": "ਦਾਣਾ ਮੰਡੀ ਤਪਾ ਵਿਖੇ ਪੀਣ ਵਾਲੇ ਪਾਣੀ ਅਤੇ ਬੈਠਣ ਵਾਲੇ ਸ਼ੈੱਡਾਂ ਦਾ ਪ੍ਰਬੰਧ ਕਰਨ ਦਾ ਕੰਮ।",
        "open": "24/11/2025",
        "close": "08/12/2025",
        "amount": "7.21 ਲੱਖ",
        "web": "https://eproc.punjab.gov.in"
      },
      {
        "no": "35",
        "dept": "ਕਾਰਜਕਾਰੀ ਇੰਜੀਨੀਅਰ, ਪੰਚਾਇਤੀ ਰਾਜ ਮੰਡਲ, ਬਰਨਾਲਾ",
        "work": "ਬਲਾਕ ਬਰਨਾਲਾ ਦੇ ਪਿੰਡਾਂ ਵਿਚ ਮਨਰੇਗਾ ਅਧੀਨ ਸਮੱਗਰੀ ਦੀ ਸਪਲਾਈ ਦਾ ਕੰਮ।",
        "open": "21/11/2025",
        "close": "05/12/2025",
        "amount": "85.58 ਲੱਖ",
        "web": "www.eproc.punjab.gov.in"
      },
      {
        "no": "36",
        "dept": "ਬਲਾਕ ਵਿਕਾਸ ਤੇ ਪੰਚਾਇਤ ਅਫ਼ਸਰ, ਬਲਾਕ ਬਰਨਾਲਾ",
        "work": "ਪਿੰਡ ਦੀਵਾਨਾ ਵਿਖੇ ਫਿਰਨੀ ਪੱਕੀ ਕਰਨ ਅਤੇ ਰੋਸ਼ਨੀ ਦਾ ਪ੍ਰਬੰਧ ਕਰਨ ਦਾ ਕੰਮ।",
        "open": "25/11/2025",
        "close": "09/12/2025",
        "amount": "8.29 ਲੱਖ",
        "web": "https://etender.punjab.gov.in"
      },
      {
        "no": "37",
        "dept": "ਨਗਰ ਪੰਚਾਇਤ, ਧਨੌਲਾ",
        "work": "ਕੂੜਾ ਪ੍ਰਬੰਧਨ ਪ੍ਰਾਜੈਕਟ ਅਧੀਨ ਸ਼ੈੱਡ ਅਤੇ ਪਿਟਾਂ ਦੀ ਉਸਾਰੀ ਦਾ ਕੰਮ।",
        "open": "21/11/2025",
        "close": "05/12/2025",
        "amount": "5.88 ਲੱਖ",
        "web": "eproc.punjab.gov.in"
      },
      {
        "no": "38",
        "dept": "ਕਾਰਜਕਾਰੀ ਇੰਜੀਨੀਅਰ, ਜਲ ਸਪਲਾਈ ਅਤੇ ਸੈਨੀਟੇਸ਼ਨ ਮੰਡਲ ਨੰ. 1, ਬਰਨਾਲਾ",
        "work": "ਪਿੰਡ ਮਹਿਲ ਖੁਰਦ ਦੀ ਵਾਟਰ ਸਪਲਾਈ ਸਕੀਮ ਦਾ ਨਵੀਨੀਕਰਨ ਅਤੇ ਘਰ-ਘਰ ਕੁਨੈਕਸ਼ਨ ਦਾ ਕੰਮ।",
        "open": "21/11/2025",
        "close": "05/12/2025",
        "amount": "78.70 ਲੱਖ",
        "web": "https://eproc.punjab.gov.in"
      },
      {
        "no": "39",
        "dept": "ਕਾਰਜਕਾਰੀ ਇੰਜੀਨੀਅਰ, ਲੋਕ ਨਿਰਮਾਣ ਵਿਭਾਗ (ਭ ਤੇ ਮ), ਪ੍ਰਾਂਤਕ ਮੰਡਲ, ਬਰਨਾਲਾ",
        "work": "ਜ਼ਿਲ੍ਹਾ ਪ੍ਰਬੰਧਕੀ ਕੰਪਲੈਕਸ ਦੀ ਇਮਾਰਤ ਦੀ ਮੁਰੰਮਤ ਅਤੇ ਰੰਗ-ਰੋਗਨ ਦਾ ਕੰਮ।",
        "open": "26/11/2025",
        "close": "10/12/2025",
        "amount": "22.58 ਲੱਖ",
        "web": "www.eproc.punjab.gov.in"
      },
      {
        "no": "40",
        "dept": "ਬਲਾਕ ਵਿਕਾਸ ਤੇ ਪੰਚਾਇਤ ਅਫ਼ਸਰ, ਬਲਾਕ ਮਹਿਲ ਕਲਾਂ",
        "work": "ਪਿੰਡ ਚੀਮਾ ਵਿਖੇ ਸਕੂਲ ਦੀ ਚਾਰਦੀਵਾਰੀ ਉੱਚੀ ਕਰਨ ਦਾ ਕੰਮ।",
        "open": "21/11/2025",
        "close": "05/12/2025",
        "amount": "6.70 ਲੱਖ",
        "web": "https://eproc.punjab.gov.in"
      },
      {
        "no": "41",
        "dept": "ਕਾਰਜ ਸਾਧਕ ਅਫ਼ਸਰ, ਨਗਰ ਕੌਂਸਲ, ਬਰਨਾਲਾ",
        "work": "ਨਵੇਂ ਬੱਸ ਸਟੈਂਡ ਨੇੜੇ ਡਰੇਨੇਜ ਸਿਸਟਮ ਅਤੇ ਸੜਕ ਦੀ ਉਸਾਰੀ ਦਾ ਕੰਮ।",
        "open": "24/11/2025",
        "close": "08/12/2025",
        "amount": "248.78 ਲੱਖ",
        "web": "eproc.punjab.gov.in"
      },
      {
        "no": "42",
        "dept": "ਕਾਰਜਕਾਰੀ ਇੰਜੀਨੀਅਰ, ਪੰਚਾਇਤੀ ਰਾਜ ਮੰਡਲ, ਬਰਨਾਲਾ",
        "work": "ਪਿੰਡ ਕਰਮਗੜ੍ਹ ਵਿਖੇ ਸਟੇਡੀਅਮ ਦੀ ਉਸਾਰੀ (ਫੇਜ਼-2) ਦਾ ਕੰਮ।",
        "open": "21/11/2025",
        "close": "05/12/2025",
        "amount": "82.82 ਲੱਖ",
        "web": "https://etender.punjab.gov.in"
      },
      {
        "no": "43",
        "dept": "ਜ਼ਿਲ੍ਹਾ ਮੰਡੀ ਅਫ਼ਸਰ, ਪੰਜਾਬ ਮੰਡੀ ਬੋਰਡ, ਬਰਨਾਲਾ",
        "work": "ਮਾਰਕੀਟ ਕਮੇਟੀ ਬਰਨਾਲਾ ਦੀਆਂ ਸੜਕਾਂ ਦਾ ਨਵੀਨੀਕਰਨ ਦਾ ਕੰਮ।",
        "open": "25/11/2025",
        "close": "09/12/2025",
        "amount": "170.82 ਲੱਖ",
        "web": "https://eproc.punjab.gov.in"
      }
    ],
    "footer_note": "ਹੋਰ ਜਾਣਕਾਰੀ ਅਤੇ ਬਿਡ ਪ੍ਰਕਿਰਿਆ ਸੰਬੰਧੀ ਵੇਰਵੇ ਹੇਠ ਲਿਖੀਆਂ ਵੈੱਬਸਾਈਟਾਂ ਤੋਂ ਵੇਖੇ ਜਾ ਸਕਦੇ ਹਨ : https://eproc.punjab.gov.in, www.eproc.punjab.gov.in, eproc.punjab.gov.in, tbw.punjab.gov.in, www.pbhip.gov.in, www.eproc.punjab.gov.in.seoc.punjab.gov.in",
    "footer_phone": "ਹੈਲਪ ਲਾਈਨ ਨੰ: 0161-6865607"
  },
  "print_marks": {
    "label_letters": [
      "C",
      "M",
      "Y",
      "K"
    ],
    "note": "ਅਜੀਤ",
    "colors": {
      "cyan": "#00AEEF",
      "magenta": "#EC008C",
      "yellow": "#FFF200",
      "black": "#1a1a1a"
    }
  }
}
